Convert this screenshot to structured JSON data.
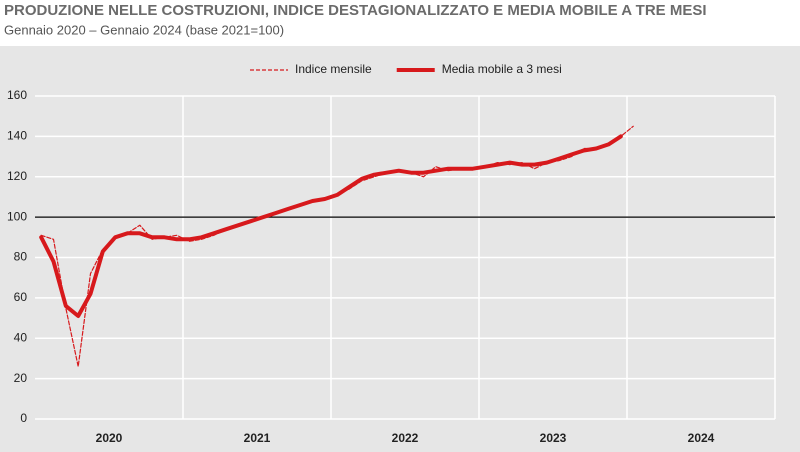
{
  "chart_data": {
    "type": "line",
    "title": "PRODUZIONE NELLE COSTRUZIONI, INDICE DESTAGIONALIZZATO E MEDIA MOBILE A TRE MESI",
    "subtitle": "Gennaio 2020 – Gennaio 2024 (base 2021=100)",
    "categories": [
      null,
      null,
      null,
      null,
      null,
      null,
      null,
      null,
      null,
      null,
      null,
      null,
      null,
      null,
      null,
      null,
      null,
      null,
      null,
      null,
      null,
      null,
      null,
      null,
      null,
      null,
      null,
      null,
      null,
      null,
      null,
      null,
      null,
      null,
      null,
      null,
      null,
      null,
      null,
      null,
      null,
      null,
      null,
      null,
      null,
      null,
      null,
      null,
      null
    ],
    "year_labels": [
      "2020",
      "2021",
      "2022",
      "2023",
      "2024"
    ],
    "series": [
      {
        "name": "Indice mensile",
        "color": "#d7191c",
        "dashed": true,
        "values": [
          91,
          89,
          55,
          26,
          72,
          84,
          90,
          92,
          96,
          89,
          90,
          91,
          88,
          89,
          91,
          94,
          96,
          98,
          100,
          102,
          104,
          106,
          108,
          109,
          111,
          114,
          118,
          120,
          122,
          123,
          122,
          120,
          125,
          123,
          124,
          124,
          125,
          127,
          126,
          127,
          124,
          127,
          128,
          130,
          134,
          134,
          136,
          140,
          145
        ]
      },
      {
        "name": "Media mobile a 3 mesi",
        "color": "#d7191c",
        "dashed": false,
        "values": [
          90,
          78,
          56,
          51,
          62,
          83,
          90,
          92,
          92,
          90,
          90,
          89,
          89,
          90,
          92,
          94,
          96,
          98,
          100,
          102,
          104,
          106,
          108,
          109,
          111,
          115,
          119,
          121,
          122,
          123,
          122,
          122,
          123,
          124,
          124,
          124,
          125,
          126,
          127,
          126,
          126,
          127,
          129,
          131,
          133,
          134,
          136,
          140,
          null
        ]
      }
    ],
    "ylim": [
      0,
      160
    ],
    "yticks": [
      0,
      20,
      40,
      60,
      80,
      100,
      120,
      140,
      160
    ],
    "baseline": 100,
    "grid": true,
    "legend": "top"
  }
}
